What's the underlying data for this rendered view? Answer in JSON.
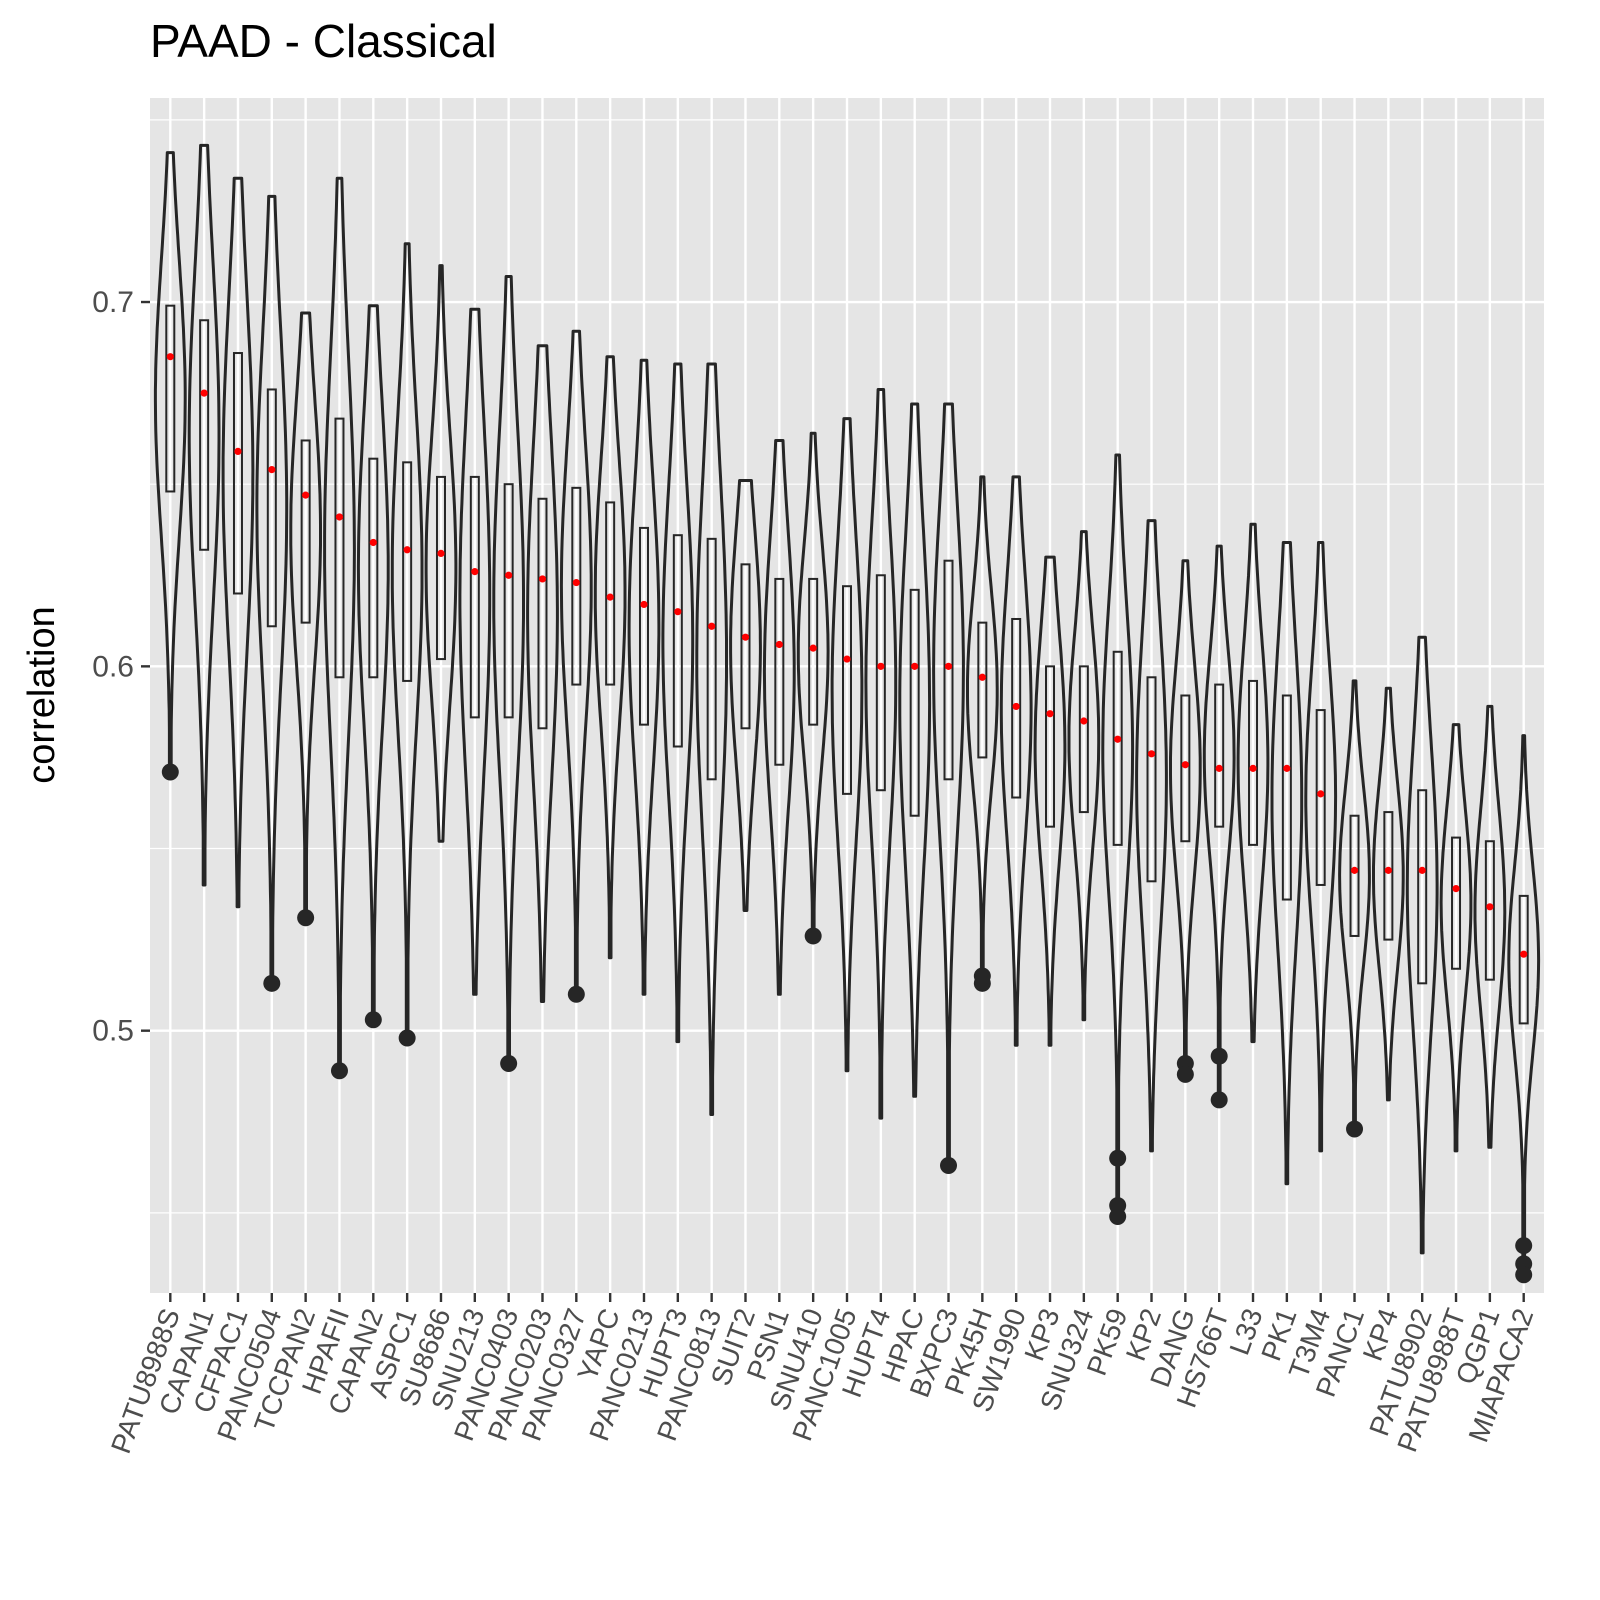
{
  "chart_data": {
    "type": "violin",
    "title": "PAAD - Classical",
    "xlabel": "",
    "ylabel": "correlation",
    "ylim": [
      0.428,
      0.756
    ],
    "yticks": [
      0.5,
      0.6,
      0.7
    ],
    "ytick_labels": [
      "0.5",
      "0.6",
      "0.7"
    ],
    "grid": true,
    "colors": {
      "panel": "#e5e5e5",
      "grid": "#ffffff",
      "outline": "#262626",
      "mean_point": "#ff0000"
    },
    "categories": [
      "PATU8988S",
      "CAPAN1",
      "CFPAC1",
      "PANC0504",
      "TCCPAN2",
      "HPAFII",
      "CAPAN2",
      "ASPC1",
      "SU8686",
      "SNU213",
      "PANC0403",
      "PANC0203",
      "PANC0327",
      "YAPC",
      "PANC0213",
      "HUPT3",
      "PANC0813",
      "SUIT2",
      "PSN1",
      "SNU410",
      "PANC1005",
      "HUPT4",
      "HPAC",
      "BXPC3",
      "PK45H",
      "SW1990",
      "KP3",
      "SNU324",
      "PK59",
      "KP2",
      "DANG",
      "HS766T",
      "L33",
      "PK1",
      "T3M4",
      "PANC1",
      "KP4",
      "PATU8902",
      "PATU8988T",
      "QGP1",
      "MIAPACA2"
    ],
    "series": [
      {
        "cat": "PATU8988S",
        "max": 0.741,
        "min": 0.571,
        "q1": 0.648,
        "q3": 0.699,
        "mean": 0.685,
        "outliers": [
          0.571
        ]
      },
      {
        "cat": "CAPAN1",
        "max": 0.743,
        "min": 0.54,
        "q1": 0.632,
        "q3": 0.695,
        "mean": 0.675,
        "outliers": []
      },
      {
        "cat": "CFPAC1",
        "max": 0.734,
        "min": 0.534,
        "q1": 0.62,
        "q3": 0.686,
        "mean": 0.659,
        "outliers": []
      },
      {
        "cat": "PANC0504",
        "max": 0.729,
        "min": 0.513,
        "q1": 0.611,
        "q3": 0.676,
        "mean": 0.654,
        "outliers": [
          0.513
        ]
      },
      {
        "cat": "TCCPAN2",
        "max": 0.697,
        "min": 0.531,
        "q1": 0.612,
        "q3": 0.662,
        "mean": 0.647,
        "outliers": [
          0.531
        ]
      },
      {
        "cat": "HPAFII",
        "max": 0.734,
        "min": 0.489,
        "q1": 0.597,
        "q3": 0.668,
        "mean": 0.641,
        "outliers": [
          0.489
        ]
      },
      {
        "cat": "CAPAN2",
        "max": 0.699,
        "min": 0.503,
        "q1": 0.597,
        "q3": 0.657,
        "mean": 0.634,
        "outliers": [
          0.503
        ]
      },
      {
        "cat": "ASPC1",
        "max": 0.716,
        "min": 0.498,
        "q1": 0.596,
        "q3": 0.656,
        "mean": 0.632,
        "outliers": [
          0.498
        ]
      },
      {
        "cat": "SU8686",
        "max": 0.71,
        "min": 0.552,
        "q1": 0.602,
        "q3": 0.652,
        "mean": 0.631,
        "outliers": []
      },
      {
        "cat": "SNU213",
        "max": 0.698,
        "min": 0.51,
        "q1": 0.586,
        "q3": 0.652,
        "mean": 0.626,
        "outliers": []
      },
      {
        "cat": "PANC0403",
        "max": 0.707,
        "min": 0.491,
        "q1": 0.586,
        "q3": 0.65,
        "mean": 0.625,
        "outliers": [
          0.491
        ]
      },
      {
        "cat": "PANC0203",
        "max": 0.688,
        "min": 0.508,
        "q1": 0.583,
        "q3": 0.646,
        "mean": 0.624,
        "outliers": []
      },
      {
        "cat": "PANC0327",
        "max": 0.692,
        "min": 0.51,
        "q1": 0.595,
        "q3": 0.649,
        "mean": 0.623,
        "outliers": [
          0.51
        ]
      },
      {
        "cat": "YAPC",
        "max": 0.685,
        "min": 0.52,
        "q1": 0.595,
        "q3": 0.645,
        "mean": 0.619,
        "outliers": []
      },
      {
        "cat": "PANC0213",
        "max": 0.684,
        "min": 0.51,
        "q1": 0.584,
        "q3": 0.638,
        "mean": 0.617,
        "outliers": []
      },
      {
        "cat": "HUPT3",
        "max": 0.683,
        "min": 0.497,
        "q1": 0.578,
        "q3": 0.636,
        "mean": 0.615,
        "outliers": []
      },
      {
        "cat": "PANC0813",
        "max": 0.683,
        "min": 0.477,
        "q1": 0.569,
        "q3": 0.635,
        "mean": 0.611,
        "outliers": []
      },
      {
        "cat": "SUIT2",
        "max": 0.651,
        "min": 0.533,
        "q1": 0.583,
        "q3": 0.628,
        "mean": 0.608,
        "outliers": []
      },
      {
        "cat": "PSN1",
        "max": 0.662,
        "min": 0.51,
        "q1": 0.573,
        "q3": 0.624,
        "mean": 0.606,
        "outliers": []
      },
      {
        "cat": "SNU410",
        "max": 0.664,
        "min": 0.526,
        "q1": 0.584,
        "q3": 0.624,
        "mean": 0.605,
        "outliers": [
          0.526
        ]
      },
      {
        "cat": "PANC1005",
        "max": 0.668,
        "min": 0.489,
        "q1": 0.565,
        "q3": 0.622,
        "mean": 0.602,
        "outliers": []
      },
      {
        "cat": "HUPT4",
        "max": 0.676,
        "min": 0.476,
        "q1": 0.566,
        "q3": 0.625,
        "mean": 0.6,
        "outliers": []
      },
      {
        "cat": "HPAC",
        "max": 0.672,
        "min": 0.482,
        "q1": 0.559,
        "q3": 0.621,
        "mean": 0.6,
        "outliers": []
      },
      {
        "cat": "BXPC3",
        "max": 0.672,
        "min": 0.463,
        "q1": 0.569,
        "q3": 0.629,
        "mean": 0.6,
        "outliers": [
          0.463
        ]
      },
      {
        "cat": "PK45H",
        "max": 0.652,
        "min": 0.513,
        "q1": 0.575,
        "q3": 0.612,
        "mean": 0.597,
        "outliers": [
          0.513,
          0.515
        ]
      },
      {
        "cat": "SW1990",
        "max": 0.652,
        "min": 0.496,
        "q1": 0.564,
        "q3": 0.613,
        "mean": 0.589,
        "outliers": []
      },
      {
        "cat": "KP3",
        "max": 0.63,
        "min": 0.496,
        "q1": 0.556,
        "q3": 0.6,
        "mean": 0.587,
        "outliers": []
      },
      {
        "cat": "SNU324",
        "max": 0.637,
        "min": 0.503,
        "q1": 0.56,
        "q3": 0.6,
        "mean": 0.585,
        "outliers": []
      },
      {
        "cat": "PK59",
        "max": 0.658,
        "min": 0.449,
        "q1": 0.551,
        "q3": 0.604,
        "mean": 0.58,
        "outliers": [
          0.465,
          0.452,
          0.449
        ]
      },
      {
        "cat": "KP2",
        "max": 0.64,
        "min": 0.467,
        "q1": 0.541,
        "q3": 0.597,
        "mean": 0.576,
        "outliers": []
      },
      {
        "cat": "DANG",
        "max": 0.629,
        "min": 0.488,
        "q1": 0.552,
        "q3": 0.592,
        "mean": 0.573,
        "outliers": [
          0.491,
          0.488
        ]
      },
      {
        "cat": "HS766T",
        "max": 0.633,
        "min": 0.481,
        "q1": 0.556,
        "q3": 0.595,
        "mean": 0.572,
        "outliers": [
          0.493,
          0.481
        ]
      },
      {
        "cat": "L33",
        "max": 0.639,
        "min": 0.497,
        "q1": 0.551,
        "q3": 0.596,
        "mean": 0.572,
        "outliers": []
      },
      {
        "cat": "PK1",
        "max": 0.634,
        "min": 0.458,
        "q1": 0.536,
        "q3": 0.592,
        "mean": 0.572,
        "outliers": []
      },
      {
        "cat": "T3M4",
        "max": 0.634,
        "min": 0.467,
        "q1": 0.54,
        "q3": 0.588,
        "mean": 0.565,
        "outliers": []
      },
      {
        "cat": "PANC1",
        "max": 0.596,
        "min": 0.473,
        "q1": 0.526,
        "q3": 0.559,
        "mean": 0.544,
        "outliers": [
          0.473
        ]
      },
      {
        "cat": "KP4",
        "max": 0.594,
        "min": 0.481,
        "q1": 0.525,
        "q3": 0.56,
        "mean": 0.544,
        "outliers": []
      },
      {
        "cat": "PATU8902",
        "max": 0.608,
        "min": 0.439,
        "q1": 0.513,
        "q3": 0.566,
        "mean": 0.544,
        "outliers": []
      },
      {
        "cat": "PATU8988T",
        "max": 0.584,
        "min": 0.467,
        "q1": 0.517,
        "q3": 0.553,
        "mean": 0.539,
        "outliers": []
      },
      {
        "cat": "QGP1",
        "max": 0.589,
        "min": 0.468,
        "q1": 0.514,
        "q3": 0.552,
        "mean": 0.534,
        "outliers": []
      },
      {
        "cat": "MIAPACA2",
        "max": 0.581,
        "min": 0.433,
        "q1": 0.502,
        "q3": 0.537,
        "mean": 0.521,
        "outliers": [
          0.441,
          0.436,
          0.433
        ]
      }
    ]
  }
}
